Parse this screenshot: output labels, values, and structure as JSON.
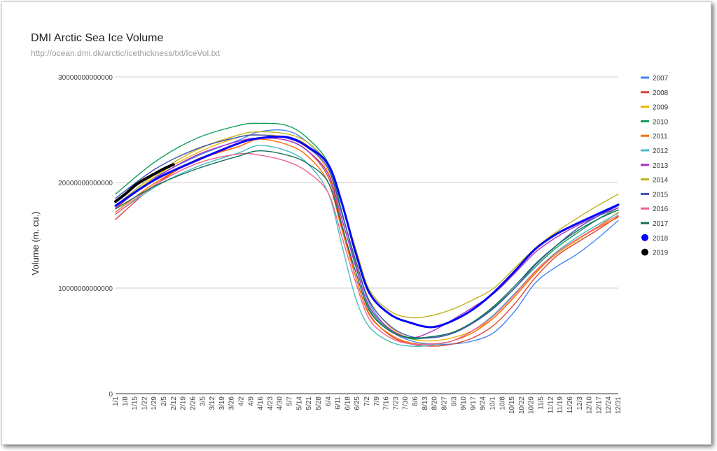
{
  "chart_data": {
    "type": "line",
    "title": "DMI Arctic Sea Ice Volume",
    "subtitle": "http://ocean.dmi.dk/arctic/icethickness/txt/IceVol.txt",
    "xlabel": "",
    "ylabel": "Volume (m. cu.)",
    "ylim": [
      0,
      30000000000000
    ],
    "yticks": [
      0,
      10000000000000,
      20000000000000,
      30000000000000
    ],
    "ytick_labels": [
      "0",
      "10000000000000",
      "20000000000000",
      "30000000000000"
    ],
    "grid": true,
    "legend_position": "right",
    "x_tick_labels": [
      "1/1",
      "1/8",
      "1/15",
      "1/22",
      "1/29",
      "2/5",
      "2/12",
      "2/19",
      "2/26",
      "3/5",
      "3/12",
      "3/19",
      "3/26",
      "4/2",
      "4/9",
      "4/16",
      "4/23",
      "4/30",
      "5/7",
      "5/14",
      "5/21",
      "5/28",
      "6/4",
      "6/11",
      "6/18",
      "6/25",
      "7/2",
      "7/9",
      "7/16",
      "7/23",
      "7/30",
      "8/6",
      "8/13",
      "8/20",
      "8/27",
      "9/3",
      "9/10",
      "9/17",
      "9/24",
      "10/1",
      "10/8",
      "10/15",
      "10/22",
      "10/29",
      "11/5",
      "11/12",
      "11/19",
      "11/26",
      "12/3",
      "12/10",
      "12/17",
      "12/24",
      "12/31"
    ],
    "x_is_day_of_year": true,
    "x_range": [
      1,
      365
    ],
    "series": [
      {
        "name": "2007",
        "color": "#4285f4",
        "x": [
          1,
          30,
          60,
          90,
          105,
          125,
          140,
          155,
          165,
          175,
          185,
          200,
          215,
          230,
          245,
          260,
          275,
          290,
          305,
          320,
          335,
          350,
          365
        ],
        "values": [
          17800000000000,
          20500000000000,
          22500000000000,
          24000000000000,
          24800000000000,
          24900000000000,
          23800000000000,
          21500000000000,
          17000000000000,
          12500000000000,
          8500000000000,
          6000000000000,
          5000000000000,
          4700000000000,
          4700000000000,
          5000000000000,
          5800000000000,
          7800000000000,
          10500000000000,
          12000000000000,
          13200000000000,
          14700000000000,
          16400000000000
        ]
      },
      {
        "name": "2008",
        "color": "#db4437",
        "x": [
          1,
          30,
          60,
          90,
          105,
          125,
          140,
          155,
          165,
          175,
          185,
          200,
          215,
          230,
          245,
          260,
          275,
          290,
          305,
          320,
          335,
          350,
          365
        ],
        "values": [
          16500000000000,
          19800000000000,
          22200000000000,
          23400000000000,
          24200000000000,
          24000000000000,
          23000000000000,
          20500000000000,
          16000000000000,
          11000000000000,
          7500000000000,
          5500000000000,
          4700000000000,
          4500000000000,
          4700000000000,
          5300000000000,
          6500000000000,
          8500000000000,
          11000000000000,
          13000000000000,
          14300000000000,
          15500000000000,
          16800000000000
        ]
      },
      {
        "name": "2009",
        "color": "#f4b400",
        "x": [
          1,
          30,
          60,
          90,
          105,
          125,
          140,
          155,
          165,
          175,
          185,
          200,
          215,
          230,
          245,
          260,
          275,
          290,
          305,
          320,
          335,
          350,
          365
        ],
        "values": [
          17500000000000,
          20600000000000,
          22800000000000,
          24300000000000,
          24500000000000,
          24300000000000,
          23500000000000,
          21000000000000,
          17000000000000,
          12500000000000,
          8800000000000,
          6300000000000,
          5200000000000,
          5000000000000,
          5300000000000,
          6000000000000,
          7200000000000,
          9200000000000,
          11500000000000,
          13200000000000,
          14500000000000,
          15800000000000,
          17200000000000
        ]
      },
      {
        "name": "2010",
        "color": "#0f9d58",
        "x": [
          1,
          30,
          60,
          90,
          105,
          125,
          140,
          155,
          165,
          175,
          185,
          200,
          215,
          230,
          245,
          260,
          275,
          290,
          305,
          320,
          335,
          350,
          365
        ],
        "values": [
          18900000000000,
          22000000000000,
          24200000000000,
          25400000000000,
          25600000000000,
          25400000000000,
          24200000000000,
          21800000000000,
          17200000000000,
          12200000000000,
          8000000000000,
          6000000000000,
          5200000000000,
          5400000000000,
          5800000000000,
          6800000000000,
          8200000000000,
          10000000000000,
          12000000000000,
          13800000000000,
          15200000000000,
          16500000000000,
          17600000000000
        ]
      },
      {
        "name": "2011",
        "color": "#ff6d00",
        "x": [
          1,
          30,
          60,
          90,
          105,
          125,
          140,
          155,
          165,
          175,
          185,
          200,
          215,
          230,
          245,
          260,
          275,
          290,
          305,
          320,
          335,
          350,
          365
        ],
        "values": [
          17200000000000,
          20000000000000,
          22100000000000,
          23400000000000,
          24100000000000,
          23600000000000,
          22500000000000,
          20000000000000,
          15500000000000,
          11000000000000,
          7400000000000,
          5600000000000,
          4800000000000,
          4700000000000,
          5000000000000,
          5800000000000,
          7200000000000,
          9200000000000,
          11400000000000,
          13300000000000,
          14600000000000,
          15700000000000,
          16700000000000
        ]
      },
      {
        "name": "2012",
        "color": "#46bdc6",
        "x": [
          1,
          30,
          60,
          90,
          105,
          125,
          140,
          155,
          165,
          175,
          185,
          200,
          215,
          230,
          245,
          260,
          275,
          290,
          305,
          320,
          335,
          350,
          365
        ],
        "values": [
          17000000000000,
          19600000000000,
          21500000000000,
          22800000000000,
          23500000000000,
          23000000000000,
          21800000000000,
          19000000000000,
          14000000000000,
          9000000000000,
          6300000000000,
          4900000000000,
          4500000000000,
          4600000000000,
          5000000000000,
          6000000000000,
          7500000000000,
          9500000000000,
          11600000000000,
          13400000000000,
          14800000000000,
          16000000000000,
          17100000000000
        ]
      },
      {
        "name": "2013",
        "color": "#ab30c4",
        "x": [
          1,
          30,
          60,
          90,
          105,
          125,
          140,
          155,
          165,
          175,
          185,
          200,
          215,
          230,
          245,
          260,
          275,
          290,
          305,
          320,
          335,
          350,
          365
        ],
        "values": [
          17600000000000,
          20400000000000,
          22600000000000,
          23900000000000,
          24200000000000,
          24000000000000,
          23000000000000,
          20800000000000,
          16500000000000,
          12000000000000,
          8200000000000,
          6100000000000,
          5300000000000,
          5900000000000,
          7000000000000,
          8200000000000,
          9500000000000,
          11400000000000,
          13400000000000,
          14800000000000,
          15900000000000,
          16800000000000,
          17600000000000
        ]
      },
      {
        "name": "2014",
        "color": "#c0b21d",
        "x": [
          1,
          30,
          60,
          90,
          105,
          125,
          140,
          155,
          165,
          175,
          185,
          200,
          215,
          230,
          245,
          260,
          275,
          290,
          305,
          320,
          335,
          350,
          365
        ],
        "values": [
          17800000000000,
          20800000000000,
          23100000000000,
          24500000000000,
          24800000000000,
          24600000000000,
          23800000000000,
          21700000000000,
          18000000000000,
          13700000000000,
          9800000000000,
          7800000000000,
          7200000000000,
          7400000000000,
          8000000000000,
          8900000000000,
          10000000000000,
          11900000000000,
          13800000000000,
          15300000000000,
          16600000000000,
          17800000000000,
          18900000000000
        ]
      },
      {
        "name": "2015",
        "color": "#3f51b5",
        "x": [
          1,
          30,
          60,
          90,
          105,
          125,
          140,
          155,
          165,
          175,
          185,
          200,
          215,
          230,
          245,
          260,
          275,
          290,
          305,
          320,
          335,
          350,
          365
        ],
        "values": [
          18500000000000,
          21300000000000,
          23200000000000,
          24300000000000,
          24500000000000,
          24200000000000,
          23300000000000,
          21300000000000,
          17000000000000,
          12600000000000,
          8700000000000,
          6400000000000,
          5400000000000,
          5300000000000,
          5700000000000,
          6700000000000,
          8100000000000,
          10000000000000,
          12200000000000,
          14000000000000,
          15600000000000,
          16800000000000,
          17800000000000
        ]
      },
      {
        "name": "2016",
        "color": "#f06292",
        "x": [
          1,
          30,
          60,
          90,
          105,
          125,
          140,
          155,
          165,
          175,
          185,
          200,
          215,
          230,
          245,
          260,
          275,
          290,
          305,
          320,
          335,
          350,
          365
        ],
        "values": [
          17000000000000,
          19800000000000,
          21800000000000,
          22700000000000,
          22600000000000,
          22000000000000,
          21000000000000,
          19000000000000,
          14800000000000,
          10500000000000,
          7000000000000,
          5300000000000,
          4700000000000,
          4700000000000,
          5000000000000,
          6000000000000,
          7400000000000,
          9400000000000,
          11600000000000,
          13300000000000,
          14600000000000,
          15800000000000,
          16900000000000
        ]
      },
      {
        "name": "2017",
        "color": "#156f5a",
        "x": [
          1,
          30,
          60,
          90,
          105,
          125,
          140,
          155,
          165,
          175,
          185,
          200,
          215,
          230,
          245,
          260,
          275,
          290,
          305,
          320,
          335,
          350,
          365
        ],
        "values": [
          17500000000000,
          19700000000000,
          21300000000000,
          22500000000000,
          23000000000000,
          22600000000000,
          21800000000000,
          20000000000000,
          15800000000000,
          11500000000000,
          7800000000000,
          5900000000000,
          5300000000000,
          5400000000000,
          5800000000000,
          6800000000000,
          8300000000000,
          10200000000000,
          12300000000000,
          14000000000000,
          15400000000000,
          16500000000000,
          17400000000000
        ]
      },
      {
        "name": "2018",
        "color": "#0000ff",
        "x": [
          1,
          30,
          60,
          90,
          105,
          125,
          140,
          155,
          165,
          175,
          185,
          200,
          215,
          230,
          245,
          260,
          275,
          290,
          305,
          320,
          335,
          350,
          365
        ],
        "values": [
          17800000000000,
          20300000000000,
          22100000000000,
          23700000000000,
          24200000000000,
          24300000000000,
          23400000000000,
          21700000000000,
          18000000000000,
          13300000000000,
          9500000000000,
          7500000000000,
          6700000000000,
          6300000000000,
          6900000000000,
          8000000000000,
          9600000000000,
          11600000000000,
          13700000000000,
          15100000000000,
          16100000000000,
          17000000000000,
          17900000000000
        ]
      },
      {
        "name": "2019",
        "color": "#000000",
        "x": [
          1,
          8,
          15,
          22,
          29,
          36,
          43
        ],
        "values": [
          18200000000000,
          18900000000000,
          19700000000000,
          20300000000000,
          20800000000000,
          21300000000000,
          21700000000000
        ]
      }
    ]
  }
}
